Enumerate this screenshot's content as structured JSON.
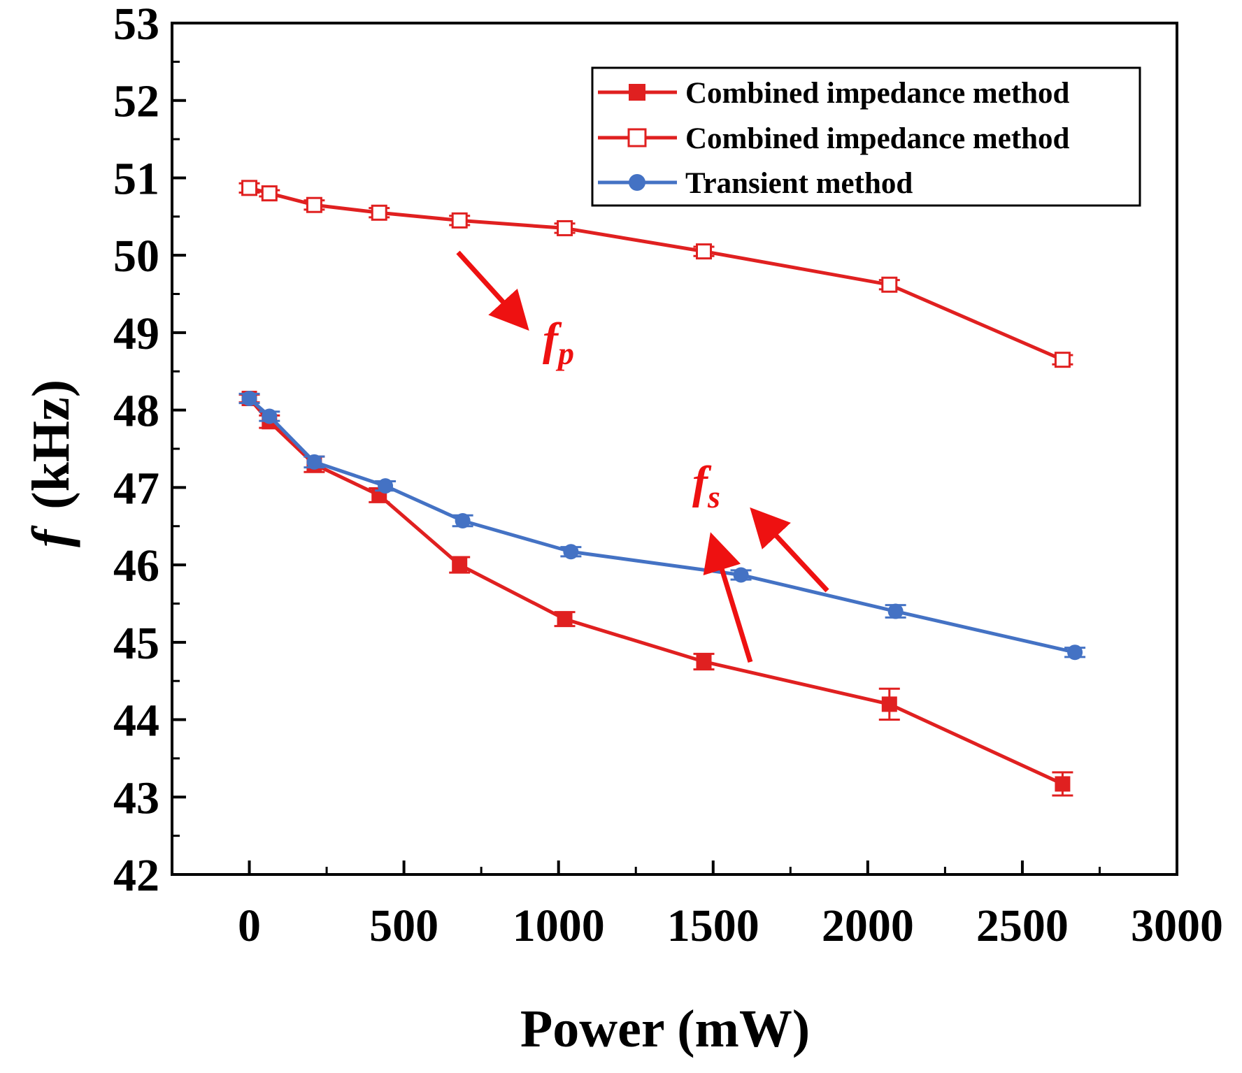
{
  "chart_data": {
    "type": "line",
    "title": "",
    "xlabel": "Power (mW)",
    "ylabel_main": "f",
    "ylabel_unit": "(kHz)",
    "xlim": [
      -250,
      3000
    ],
    "ylim": [
      42,
      53
    ],
    "xticks": [
      0,
      500,
      1000,
      1500,
      2000,
      2500,
      3000
    ],
    "yticks": [
      42,
      43,
      44,
      45,
      46,
      47,
      48,
      49,
      50,
      51,
      52,
      53
    ],
    "grid": false,
    "legend_position": "top-right",
    "series": [
      {
        "name": "Combined impedance method",
        "color": "#e02020",
        "marker": "square-filled",
        "x": [
          0,
          65,
          210,
          420,
          680,
          1020,
          1470,
          2070,
          2630
        ],
        "y": [
          48.15,
          47.85,
          47.3,
          46.9,
          46.0,
          45.3,
          44.75,
          44.2,
          43.17
        ],
        "err": [
          0.05,
          0.08,
          0.1,
          0.09,
          0.1,
          0.09,
          0.1,
          0.2,
          0.15
        ]
      },
      {
        "name": "Combined impedance method",
        "color": "#e02020",
        "marker": "square-open",
        "x": [
          0,
          65,
          210,
          420,
          680,
          1020,
          1470,
          2070,
          2630
        ],
        "y": [
          50.87,
          50.8,
          50.65,
          50.55,
          50.45,
          50.35,
          50.05,
          49.62,
          48.65
        ],
        "err": [
          0.06,
          0.04,
          0.06,
          0.06,
          0.06,
          0.06,
          0.06,
          0.06,
          0.06
        ]
      },
      {
        "name": "Transient method",
        "color": "#4472c4",
        "marker": "circle-filled",
        "x": [
          0,
          65,
          210,
          440,
          690,
          1040,
          1590,
          2090,
          2670
        ],
        "y": [
          48.15,
          47.92,
          47.33,
          47.02,
          46.57,
          46.17,
          45.87,
          45.4,
          44.87
        ],
        "err": [
          0.06,
          0.06,
          0.07,
          0.06,
          0.07,
          0.06,
          0.06,
          0.08,
          0.06
        ]
      }
    ],
    "annotations": [
      {
        "label": "f",
        "subscript": "p"
      },
      {
        "label": "f",
        "subscript": "s"
      }
    ]
  }
}
